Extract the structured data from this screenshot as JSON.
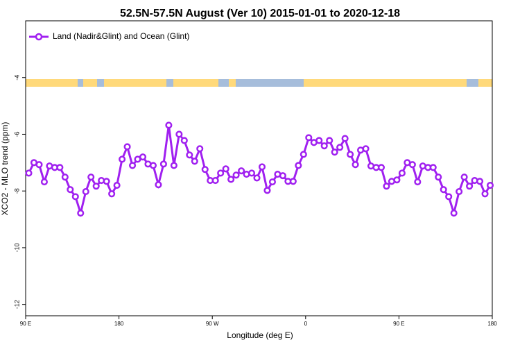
{
  "chart_data": {
    "type": "line",
    "title": "52.5N-57.5N August (Ver 10)   2015-01-01 to 2020-12-18",
    "xlabel": "Longitude (deg E)",
    "ylabel": "XCO2 - MLO trend (ppm)",
    "xlim": [
      90,
      540
    ],
    "xticks": [
      {
        "value": 90,
        "label": "90 E"
      },
      180,
      {
        "value": 270,
        "label": "90 W"
      },
      {
        "value": 360,
        "label": "0"
      },
      {
        "value": 450,
        "label": "90 E"
      },
      {
        "value": 540,
        "label": "180"
      }
    ],
    "ylim": [
      -12.4,
      -2.0
    ],
    "yticks": [
      -4,
      -6,
      -8,
      -10,
      -12
    ],
    "legend": "upper left",
    "x": [
      93,
      98,
      103,
      108,
      113,
      118,
      123,
      128,
      133,
      138,
      143,
      148,
      153,
      158,
      163,
      168,
      173,
      178,
      183,
      188,
      193,
      198,
      203,
      208,
      213,
      218,
      223,
      228,
      233,
      238,
      243,
      248,
      253,
      258,
      263,
      268,
      273,
      278,
      283,
      288,
      293,
      298,
      303,
      308,
      313,
      318,
      323,
      328,
      333,
      338,
      343,
      348,
      353,
      358,
      363,
      368,
      373,
      378,
      383,
      388,
      393,
      398,
      403,
      408,
      413,
      418,
      423,
      428,
      433,
      438,
      443,
      448,
      453,
      458,
      463,
      468,
      473,
      478,
      483,
      488,
      493,
      498,
      503,
      508,
      513,
      518,
      523,
      528,
      533,
      538
    ],
    "series": [
      {
        "name": "Land (Nadir&Glint) and Ocean (Glint)",
        "color": "#a020f0",
        "values": [
          -7.37,
          -7.0,
          -7.07,
          -7.68,
          -7.12,
          -7.17,
          -7.17,
          -7.51,
          -7.95,
          -8.2,
          -8.78,
          -8.02,
          -7.51,
          -7.83,
          -7.63,
          -7.66,
          -8.1,
          -7.8,
          -6.88,
          -6.44,
          -7.1,
          -6.88,
          -6.8,
          -7.05,
          -7.1,
          -7.78,
          -7.05,
          -5.68,
          -7.1,
          -6.0,
          -6.22,
          -6.73,
          -6.95,
          -6.51,
          -7.24,
          -7.63,
          -7.63,
          -7.37,
          -7.22,
          -7.59,
          -7.44,
          -7.29,
          -7.41,
          -7.37,
          -7.54,
          -7.15,
          -7.98,
          -7.68,
          -7.41,
          -7.46,
          -7.66,
          -7.66,
          -7.1,
          -6.71,
          -6.12,
          -6.29,
          -6.22,
          -6.41,
          -6.22,
          -6.63,
          -6.46,
          -6.15,
          -6.71,
          -7.07,
          -6.56,
          -6.51,
          -7.12,
          -7.17,
          -7.17,
          -7.83,
          -7.66,
          -7.61,
          -7.37,
          -7.0,
          -7.07,
          -7.68,
          -7.12,
          -7.17,
          -7.17,
          -7.51,
          -7.95,
          -8.2,
          -8.78,
          -8.02,
          -7.51,
          -7.83,
          -7.63,
          -7.66,
          -8.1,
          -7.8
        ]
      }
    ]
  }
}
